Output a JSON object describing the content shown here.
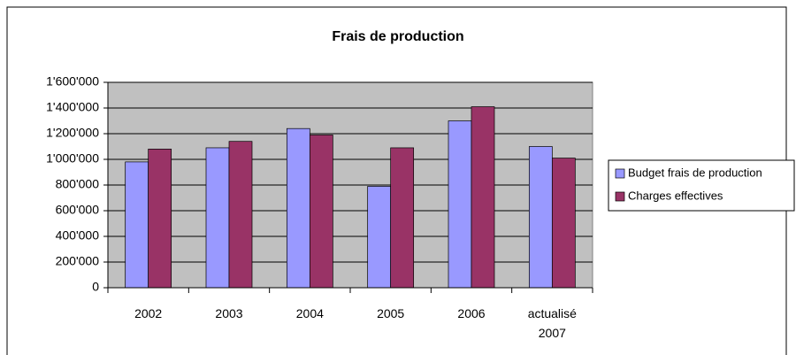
{
  "chart_data": {
    "type": "bar",
    "title": "Frais de production",
    "categories": [
      "2002",
      "2003",
      "2004",
      "2005",
      "2006",
      "actualisé 2007"
    ],
    "series": [
      {
        "name": "Budget frais de production",
        "color": "#9999ff",
        "values": [
          980000,
          1090000,
          1240000,
          790000,
          1300000,
          1100000
        ]
      },
      {
        "name": "Charges effectives",
        "color": "#993366",
        "values": [
          1080000,
          1140000,
          1190000,
          1090000,
          1410000,
          1010000
        ]
      }
    ],
    "ylim": [
      0,
      1600000
    ],
    "yticks": [
      0,
      {
        "value": 200000,
        "label": "200'000"
      },
      {
        "value": 400000,
        "label": "400'000"
      },
      {
        "value": 600000,
        "label": "600'000"
      },
      {
        "value": 800000,
        "label": "800'000"
      },
      {
        "value": 1000000,
        "label": "1'000'000"
      },
      {
        "value": 1200000,
        "label": "1'200'000"
      },
      {
        "value": 1400000,
        "label": "1'400'000"
      },
      {
        "value": 1600000,
        "label": "1'600'000"
      }
    ],
    "grid": true,
    "legend": "right"
  }
}
